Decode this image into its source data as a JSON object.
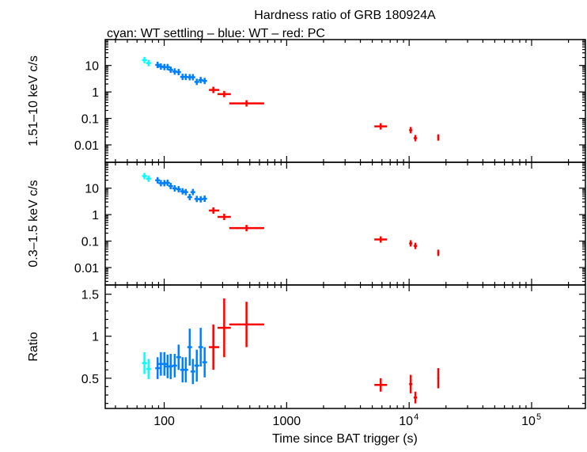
{
  "chart_data": {
    "type": "scatter",
    "title": "Hardness ratio of GRB 180924A",
    "subtitle": "cyan: WT settling – blue: WT – red: PC",
    "xlabel": "Time since BAT trigger (s)",
    "xscale": "log",
    "xlim": [
      33,
      275000
    ],
    "xticks": [
      {
        "v": 100,
        "label": "100"
      },
      {
        "v": 1000,
        "label": "1000"
      },
      {
        "v": 10000,
        "label": "10",
        "sup": "4"
      },
      {
        "v": 100000,
        "label": "10",
        "sup": "5"
      }
    ],
    "colors": {
      "wt_settling": "#00ffff",
      "wt": "#0080ff",
      "pc": "#ff0000"
    },
    "panels": [
      {
        "ylabel": "1.51–10 keV c/s",
        "yscale": "log",
        "ylim": [
          0.0022,
          95
        ],
        "yticks": [
          {
            "v": 10,
            "label": "10"
          },
          {
            "v": 1,
            "label": "1"
          },
          {
            "v": 0.1,
            "label": "0.1"
          },
          {
            "v": 0.01,
            "label": "0.01"
          }
        ],
        "series": [
          {
            "mode": "wt_settling",
            "x": [
              69,
              74.6
            ],
            "y": [
              16,
              12.3
            ]
          },
          {
            "mode": "wt",
            "x": [
              88.4,
              94,
              100.4,
              106.6,
              113,
              121.9,
              131.2,
              141.3,
              150,
              161.6,
              171.5,
              184.6,
              198.7,
              214
            ],
            "y": [
              10.5,
              9.1,
              8.7,
              8.7,
              6.9,
              5.9,
              5.6,
              3.7,
              3.7,
              3.6,
              3.6,
              2.4,
              2.8,
              2.6
            ]
          },
          {
            "mode": "pc",
            "x": [
              252,
              309,
              470,
              5860,
              10300,
              11250,
              17300
            ],
            "xlo": [
              232,
              273,
              340,
              5200,
              10000,
              10900,
              17000
            ],
            "xhi": [
              281,
              350,
              655,
              6600,
              10600,
              11600,
              17600
            ],
            "y": [
              1.19,
              0.83,
              0.37,
              0.05,
              0.036,
              0.018,
              0.019
            ]
          }
        ]
      },
      {
        "ylabel": "0.3–1.5 keV c/s",
        "yscale": "log",
        "ylim": [
          0.0022,
          95
        ],
        "yticks": [
          {
            "v": 10,
            "label": "10"
          },
          {
            "v": 1,
            "label": "1"
          },
          {
            "v": 0.1,
            "label": "0.1"
          },
          {
            "v": 0.01,
            "label": "0.01"
          }
        ],
        "series": [
          {
            "mode": "wt_settling",
            "x": [
              69,
              74.6
            ],
            "y": [
              28.6,
              22.8
            ]
          },
          {
            "mode": "wt",
            "x": [
              88.4,
              94,
              100.4,
              106.6,
              113,
              121.9,
              131.2,
              141.3,
              150,
              161.6,
              171.5,
              184.6,
              198.7,
              214
            ],
            "y": [
              19.8,
              15.4,
              15.4,
              16,
              12,
              9.8,
              9.1,
              7.6,
              7.1,
              4.6,
              7.1,
              3.9,
              3.8,
              4.0
            ]
          },
          {
            "mode": "pc",
            "x": [
              252,
              309,
              470,
              5860,
              10300,
              11250,
              17300
            ],
            "xlo": [
              232,
              273,
              340,
              5200,
              10000,
              10900,
              17000
            ],
            "xhi": [
              281,
              350,
              655,
              6600,
              10600,
              11600,
              17600
            ],
            "y": [
              1.43,
              0.82,
              0.31,
              0.115,
              0.082,
              0.066,
              0.036
            ]
          }
        ]
      },
      {
        "ylabel": "Ratio",
        "yscale": "linear",
        "ylim": [
          0.14,
          1.61
        ],
        "yticks": [
          {
            "v": 1.5,
            "label": "1.5"
          },
          {
            "v": 1,
            "label": "1"
          },
          {
            "v": 0.5,
            "label": "0.5"
          }
        ],
        "series": [
          {
            "mode": "wt_settling",
            "x": [
              69,
              74.6
            ],
            "y": [
              0.68,
              0.61
            ],
            "yerr": [
              0.13,
              0.12
            ]
          },
          {
            "mode": "wt",
            "x": [
              88.4,
              94,
              100.4,
              106.6,
              113,
              121.9,
              131.2,
              141.3,
              150,
              161.6,
              171.5,
              184.6,
              198.7,
              214
            ],
            "y": [
              0.62,
              0.67,
              0.67,
              0.64,
              0.64,
              0.65,
              0.75,
              0.6,
              0.6,
              0.87,
              0.58,
              0.65,
              0.87,
              0.69
            ],
            "yerr": [
              0.13,
              0.14,
              0.14,
              0.14,
              0.15,
              0.14,
              0.15,
              0.15,
              0.15,
              0.22,
              0.15,
              0.19,
              0.23,
              0.18
            ]
          },
          {
            "mode": "pc",
            "x": [
              252,
              309,
              470,
              5860,
              10300,
              11250,
              17300
            ],
            "xlo": [
              232,
              273,
              340,
              5200,
              10000,
              10900,
              17000
            ],
            "xhi": [
              281,
              350,
              655,
              6600,
              10600,
              11600,
              17600
            ],
            "y": [
              0.87,
              1.1,
              1.14,
              0.42,
              0.43,
              0.27,
              0.5
            ],
            "yerr": [
              0.27,
              0.35,
              0.27,
              0.08,
              0.11,
              0.07,
              0.12
            ]
          }
        ]
      }
    ]
  }
}
